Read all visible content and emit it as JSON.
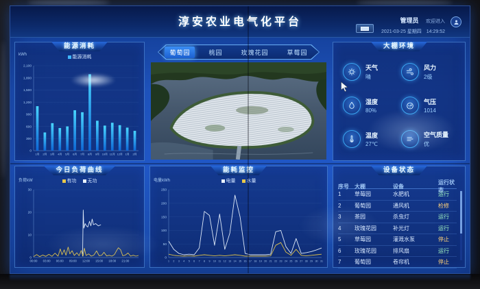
{
  "header": {
    "title": "淳安农业电气化平台",
    "user": "管理员",
    "welcome": "欢迎进入",
    "date": "2021-03-25 星期四",
    "time": "14:29:52"
  },
  "tabs": [
    {
      "label": "葡萄园",
      "active": true
    },
    {
      "label": "桃园",
      "active": false
    },
    {
      "label": "玫瑰花园",
      "active": false
    },
    {
      "label": "草莓园",
      "active": false
    }
  ],
  "panels": {
    "energy": {
      "title": "能源消耗",
      "unit": "kWh",
      "legend": [
        {
          "label": "能源消耗",
          "color": "#3fb6ff"
        }
      ]
    },
    "env": {
      "title": "大棚环境",
      "items": [
        {
          "icon": "weather-icon",
          "label": "天气",
          "value": "晴"
        },
        {
          "icon": "wind-icon",
          "label": "风力",
          "value": "2级"
        },
        {
          "icon": "humidity-icon",
          "label": "湿度",
          "value": "80%"
        },
        {
          "icon": "pressure-icon",
          "label": "气压",
          "value": "1014"
        },
        {
          "icon": "temperature-icon",
          "label": "温度",
          "value": "27℃"
        },
        {
          "icon": "air-quality-icon",
          "label": "空气质量",
          "value": "优"
        }
      ]
    },
    "load": {
      "title": "今日负荷曲线",
      "unit": "负荷kW",
      "legend": [
        {
          "label": "有功",
          "color": "#e8c84a"
        },
        {
          "label": "无功",
          "color": "#e9f3ff"
        }
      ]
    },
    "monitor": {
      "title": "能耗监控",
      "unit": "电量kWh",
      "legend": [
        {
          "label": "电量",
          "color": "#e9f3ff"
        },
        {
          "label": "水量",
          "color": "#e8c84a"
        }
      ]
    },
    "devices": {
      "title": "设备状态",
      "columns": [
        "序号",
        "大棚",
        "设备",
        "运行状态"
      ],
      "rows": [
        [
          "1",
          "草莓园",
          "水肥机",
          "运行"
        ],
        [
          "2",
          "葡萄园",
          "通风机",
          "检修"
        ],
        [
          "3",
          "茶园",
          "杀虫灯",
          "运行"
        ],
        [
          "4",
          "玫瑰花园",
          "补光灯",
          "运行"
        ],
        [
          "5",
          "草莓园",
          "灌溉水泵",
          "停止"
        ],
        [
          "6",
          "玫瑰花园",
          "排风扇",
          "运行"
        ],
        [
          "7",
          "葡萄园",
          "卷帘机",
          "停止"
        ]
      ],
      "status_colors": {
        "运行": "#9ff0c0",
        "停止": "#ffd27a",
        "检修": "#ffd27a"
      }
    }
  },
  "chart_data": [
    {
      "id": "energy",
      "type": "bar",
      "title": "能源消耗",
      "ylabel": "kWh",
      "categories": [
        "1月",
        "2月",
        "3月",
        "4月",
        "5月",
        "6月",
        "7月",
        "8月",
        "9月",
        "10月",
        "11月",
        "12月",
        "1月",
        "2月"
      ],
      "values": [
        1100,
        450,
        680,
        560,
        600,
        1000,
        950,
        1890,
        740,
        620,
        690,
        630,
        570,
        490
      ],
      "ymax": 2100,
      "yticks": [
        "0",
        "300",
        "600",
        "900",
        "1,200",
        "1,500",
        "1,800",
        "2,100"
      ],
      "bar_color_top": "#49d6ff",
      "bar_color_bottom": "#0e67d6",
      "legend_position": "top"
    },
    {
      "id": "load",
      "type": "line",
      "title": "今日负荷曲线",
      "ylabel": "负荷kW",
      "xmin": 0,
      "xmax": 24,
      "xtickstep": 3,
      "xticks": [
        "00:00",
        "03:00",
        "06:00",
        "09:00",
        "12:00",
        "15:00",
        "18:00",
        "21:00"
      ],
      "ymax": 30,
      "yticks": [
        "0",
        "10",
        "20",
        "30"
      ],
      "series": [
        {
          "name": "无功",
          "color": "#e9f3ff",
          "points": [
            [
              11.2,
              0.5
            ],
            [
              11.35,
              21
            ],
            [
              11.5,
              13
            ],
            [
              11.8,
              15
            ],
            [
              12.1,
              14
            ],
            [
              12.4,
              13.5
            ],
            [
              12.8,
              16
            ],
            [
              13.1,
              14
            ],
            [
              13.4,
              17
            ],
            [
              13.7,
              14.5
            ],
            [
              14.2,
              15
            ],
            [
              14.8,
              14
            ],
            [
              15.4,
              14.5
            ]
          ]
        },
        {
          "name": "有功",
          "color": "#e8c84a",
          "points": [
            [
              0,
              0.4
            ],
            [
              0.7,
              1.3
            ],
            [
              1.4,
              0.4
            ],
            [
              2.1,
              1.1
            ],
            [
              2.8,
              0.5
            ],
            [
              3.5,
              1.4
            ],
            [
              4.2,
              0.5
            ],
            [
              4.9,
              1.9
            ],
            [
              5.6,
              0.6
            ],
            [
              6.1,
              3.8
            ],
            [
              6.5,
              1.2
            ],
            [
              7,
              3.4
            ],
            [
              7.4,
              1
            ],
            [
              7.9,
              4.6
            ],
            [
              8.3,
              1.6
            ],
            [
              8.8,
              3
            ],
            [
              9.3,
              0.9
            ],
            [
              9.9,
              2.1
            ],
            [
              10.4,
              0.8
            ],
            [
              10.9,
              3.1
            ],
            [
              11.3,
              0.6
            ],
            [
              11.6,
              4.1
            ],
            [
              12,
              0.9
            ],
            [
              12.6,
              1.6
            ],
            [
              13.2,
              0.6
            ],
            [
              13.8,
              1.1
            ],
            [
              14.4,
              2.9
            ],
            [
              15,
              0.8
            ],
            [
              15.6,
              1
            ],
            [
              16.1,
              2.3
            ],
            [
              16.7,
              0.7
            ],
            [
              17.3,
              1
            ],
            [
              17.9,
              0.6
            ],
            [
              18.5,
              1.3
            ],
            [
              19,
              3.1
            ],
            [
              19.4,
              4.3
            ],
            [
              19.9,
              3.4
            ],
            [
              20.4,
              0.8
            ],
            [
              21,
              1.1
            ],
            [
              21.6,
              2
            ],
            [
              22.2,
              0.6
            ],
            [
              22.8,
              1
            ],
            [
              23.4,
              0.6
            ],
            [
              24,
              0.9
            ]
          ]
        }
      ]
    },
    {
      "id": "monitor",
      "type": "line",
      "title": "能耗监控",
      "ylabel": "电量kWh",
      "xmin": 1,
      "xmax": 31,
      "xtickstep": 1,
      "xtickfont": 3.6,
      "xticks": [
        "1",
        "2",
        "3",
        "4",
        "5",
        "6",
        "7",
        "8",
        "9",
        "10",
        "11",
        "12",
        "13",
        "14",
        "15",
        "16",
        "17",
        "18",
        "19",
        "20",
        "21",
        "22",
        "23",
        "24",
        "25",
        "26",
        "27",
        "28",
        "29",
        "30",
        "31"
      ],
      "ymax": 250,
      "yticks": [
        "0",
        "50",
        "100",
        "150",
        "200",
        "250"
      ],
      "series": [
        {
          "name": "电量",
          "color": "#e9f3ff",
          "values": [
            60,
            30,
            15,
            10,
            12,
            10,
            35,
            170,
            155,
            45,
            160,
            30,
            90,
            230,
            150,
            15,
            10,
            10,
            10,
            10,
            12,
            95,
            100,
            40,
            15,
            70,
            15,
            18,
            22,
            28,
            35
          ]
        },
        {
          "name": "水量",
          "color": "#e8c84a",
          "values": [
            12,
            8,
            6,
            5,
            6,
            5,
            8,
            10,
            8,
            6,
            8,
            6,
            8,
            10,
            8,
            5,
            5,
            5,
            5,
            5,
            6,
            45,
            55,
            20,
            8,
            30,
            8,
            6,
            8,
            10,
            12
          ]
        }
      ]
    }
  ]
}
